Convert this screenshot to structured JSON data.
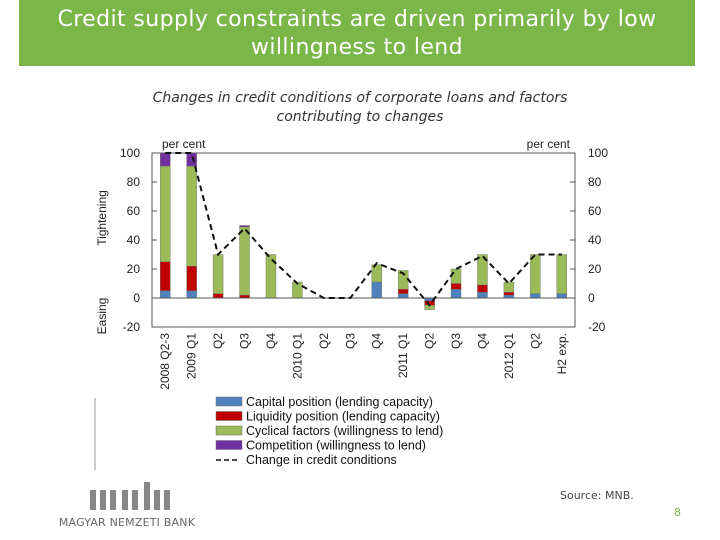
{
  "title": "Credit supply constraints are driven primarily by low\nwillingness to lend",
  "subtitle": "Changes in credit conditions of corporate loans and factors\ncontributing to changes",
  "source": "Source: MNB.",
  "page_number": "8",
  "logo_text": "MAGYAR NEMZETI BANK",
  "colors": {
    "title_bg": "#7ab648",
    "capital": "#4f81bd",
    "liquidity": "#c00000",
    "cyclical": "#9bbb59",
    "competition": "#7030a0"
  },
  "chart_data": {
    "type": "bar",
    "stacked": true,
    "left_axis_unit": "per cent",
    "right_axis_unit": "per cent",
    "left_axis_side_labels": {
      "top": "Tightening",
      "bottom": "Easing"
    },
    "ylim": [
      -20,
      100
    ],
    "yticks": [
      "100",
      "80",
      "60",
      "40",
      "20",
      "0",
      "-20"
    ],
    "categories": [
      "2008 Q2-3",
      "2009 Q1",
      "Q2",
      "Q3",
      "Q4",
      "2010 Q1",
      "Q2",
      "Q3",
      "Q4",
      "2011 Q1",
      "Q2",
      "Q3",
      "Q4",
      "2012 Q1",
      "Q2",
      "H2 exp."
    ],
    "series": [
      {
        "name": "Capital position (lending capacity)",
        "color": "#4f81bd",
        "values": [
          5,
          5,
          0,
          0,
          0,
          0,
          0,
          0,
          11,
          3,
          -2,
          6,
          4,
          2,
          3,
          3
        ]
      },
      {
        "name": "Liquidity position (lending capacity)",
        "color": "#c00000",
        "values": [
          20,
          17,
          3,
          2,
          0,
          0,
          0,
          0,
          0,
          3,
          -3,
          4,
          5,
          2,
          0,
          0
        ]
      },
      {
        "name": "Cyclical factors (willingness to lend)",
        "color": "#9bbb59",
        "values": [
          66,
          69,
          27,
          47,
          30,
          11,
          0,
          0,
          12,
          13,
          -3,
          10,
          21,
          7,
          27,
          27
        ]
      },
      {
        "name": "Competition (willingness to lend)",
        "color": "#7030a0",
        "values": [
          9,
          9,
          0,
          1,
          0,
          0,
          0,
          0,
          0,
          0,
          0,
          0,
          0,
          0,
          0,
          0
        ]
      }
    ],
    "line": {
      "name": "Change in credit conditions",
      "values": [
        100,
        100,
        30,
        48,
        27,
        10,
        0,
        0,
        24,
        17,
        -5,
        20,
        29,
        10,
        30,
        30
      ]
    },
    "grid": false,
    "legend_position": "bottom"
  }
}
